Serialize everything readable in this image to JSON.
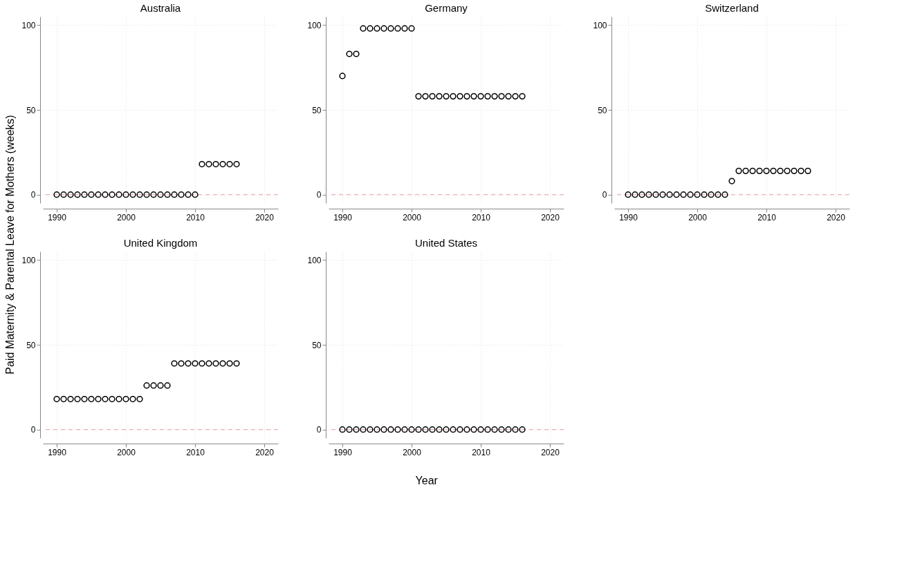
{
  "chart_data": [
    {
      "type": "scatter",
      "title": "Australia",
      "ylabel": "Paid Maternity & Parental Leave for Mothers (weeks)",
      "x": [
        1990,
        1991,
        1992,
        1993,
        1994,
        1995,
        1996,
        1997,
        1998,
        1999,
        2000,
        2001,
        2002,
        2003,
        2004,
        2005,
        2006,
        2007,
        2008,
        2009,
        2010,
        2011,
        2012,
        2013,
        2014,
        2015,
        2016
      ],
      "series": [
        {
          "color": "#000000",
          "values": [
            0,
            0,
            0,
            0,
            0,
            0,
            0,
            0,
            0,
            0,
            0,
            0,
            0,
            0,
            0,
            0,
            0,
            0,
            0,
            0,
            0,
            18,
            18,
            18,
            18,
            18,
            18
          ]
        }
      ],
      "xlim": [
        1988,
        2022
      ],
      "xticks": [
        1990,
        2000,
        2010,
        2020
      ],
      "ylim": [
        -5,
        105
      ],
      "yticks": [
        0,
        50,
        100
      ],
      "grid": true,
      "marker": "circle",
      "ref_lines": [
        {
          "axis": "y",
          "value": 0,
          "color": "#e8a0a0",
          "line_style": "dashed"
        }
      ]
    },
    {
      "type": "scatter",
      "title": "Germany",
      "x": [
        1990,
        1991,
        1992,
        1993,
        1994,
        1995,
        1996,
        1997,
        1998,
        1999,
        2000,
        2001,
        2002,
        2003,
        2004,
        2005,
        2006,
        2007,
        2008,
        2009,
        2010,
        2011,
        2012,
        2013,
        2014,
        2015,
        2016
      ],
      "series": [
        {
          "color": "#000000",
          "values": [
            70,
            83,
            83,
            98,
            98,
            98,
            98,
            98,
            98,
            98,
            98,
            58,
            58,
            58,
            58,
            58,
            58,
            58,
            58,
            58,
            58,
            58,
            58,
            58,
            58,
            58,
            58
          ]
        }
      ],
      "xlim": [
        1988,
        2022
      ],
      "xticks": [
        1990,
        2000,
        2010,
        2020
      ],
      "ylim": [
        -5,
        105
      ],
      "yticks": [
        0,
        50,
        100
      ],
      "grid": true,
      "marker": "circle",
      "ref_lines": [
        {
          "axis": "y",
          "value": 0,
          "color": "#e8a0a0",
          "line_style": "dashed"
        }
      ]
    },
    {
      "type": "scatter",
      "title": "Switzerland",
      "x": [
        1990,
        1991,
        1992,
        1993,
        1994,
        1995,
        1996,
        1997,
        1998,
        1999,
        2000,
        2001,
        2002,
        2003,
        2004,
        2005,
        2006,
        2007,
        2008,
        2009,
        2010,
        2011,
        2012,
        2013,
        2014,
        2015,
        2016
      ],
      "series": [
        {
          "color": "#000000",
          "values": [
            0,
            0,
            0,
            0,
            0,
            0,
            0,
            0,
            0,
            0,
            0,
            0,
            0,
            0,
            0,
            8,
            14,
            14,
            14,
            14,
            14,
            14,
            14,
            14,
            14,
            14,
            14
          ]
        }
      ],
      "xlim": [
        1988,
        2022
      ],
      "xticks": [
        1990,
        2000,
        2010,
        2020
      ],
      "ylim": [
        -5,
        105
      ],
      "yticks": [
        0,
        50,
        100
      ],
      "grid": true,
      "marker": "circle",
      "ref_lines": [
        {
          "axis": "y",
          "value": 0,
          "color": "#e8a0a0",
          "line_style": "dashed"
        }
      ]
    },
    {
      "type": "scatter",
      "title": "United Kingdom",
      "x": [
        1990,
        1991,
        1992,
        1993,
        1994,
        1995,
        1996,
        1997,
        1998,
        1999,
        2000,
        2001,
        2002,
        2003,
        2004,
        2005,
        2006,
        2007,
        2008,
        2009,
        2010,
        2011,
        2012,
        2013,
        2014,
        2015,
        2016
      ],
      "series": [
        {
          "color": "#000000",
          "values": [
            18,
            18,
            18,
            18,
            18,
            18,
            18,
            18,
            18,
            18,
            18,
            18,
            18,
            26,
            26,
            26,
            26,
            39,
            39,
            39,
            39,
            39,
            39,
            39,
            39,
            39,
            39
          ]
        }
      ],
      "xlim": [
        1988,
        2022
      ],
      "xticks": [
        1990,
        2000,
        2010,
        2020
      ],
      "ylim": [
        -5,
        105
      ],
      "yticks": [
        0,
        50,
        100
      ],
      "grid": true,
      "marker": "circle",
      "ref_lines": [
        {
          "axis": "y",
          "value": 0,
          "color": "#e8a0a0",
          "line_style": "dashed"
        }
      ]
    },
    {
      "type": "scatter",
      "title": "United States",
      "xlabel": "Year",
      "x": [
        1990,
        1991,
        1992,
        1993,
        1994,
        1995,
        1996,
        1997,
        1998,
        1999,
        2000,
        2001,
        2002,
        2003,
        2004,
        2005,
        2006,
        2007,
        2008,
        2009,
        2010,
        2011,
        2012,
        2013,
        2014,
        2015,
        2016
      ],
      "series": [
        {
          "color": "#000000",
          "values": [
            0,
            0,
            0,
            0,
            0,
            0,
            0,
            0,
            0,
            0,
            0,
            0,
            0,
            0,
            0,
            0,
            0,
            0,
            0,
            0,
            0,
            0,
            0,
            0,
            0,
            0,
            0
          ]
        }
      ],
      "xlim": [
        1988,
        2022
      ],
      "xticks": [
        1990,
        2000,
        2010,
        2020
      ],
      "ylim": [
        -5,
        105
      ],
      "yticks": [
        0,
        50,
        100
      ],
      "grid": true,
      "marker": "circle",
      "ref_lines": [
        {
          "axis": "y",
          "value": 0,
          "color": "#e8a0a0",
          "line_style": "dashed"
        }
      ]
    }
  ]
}
